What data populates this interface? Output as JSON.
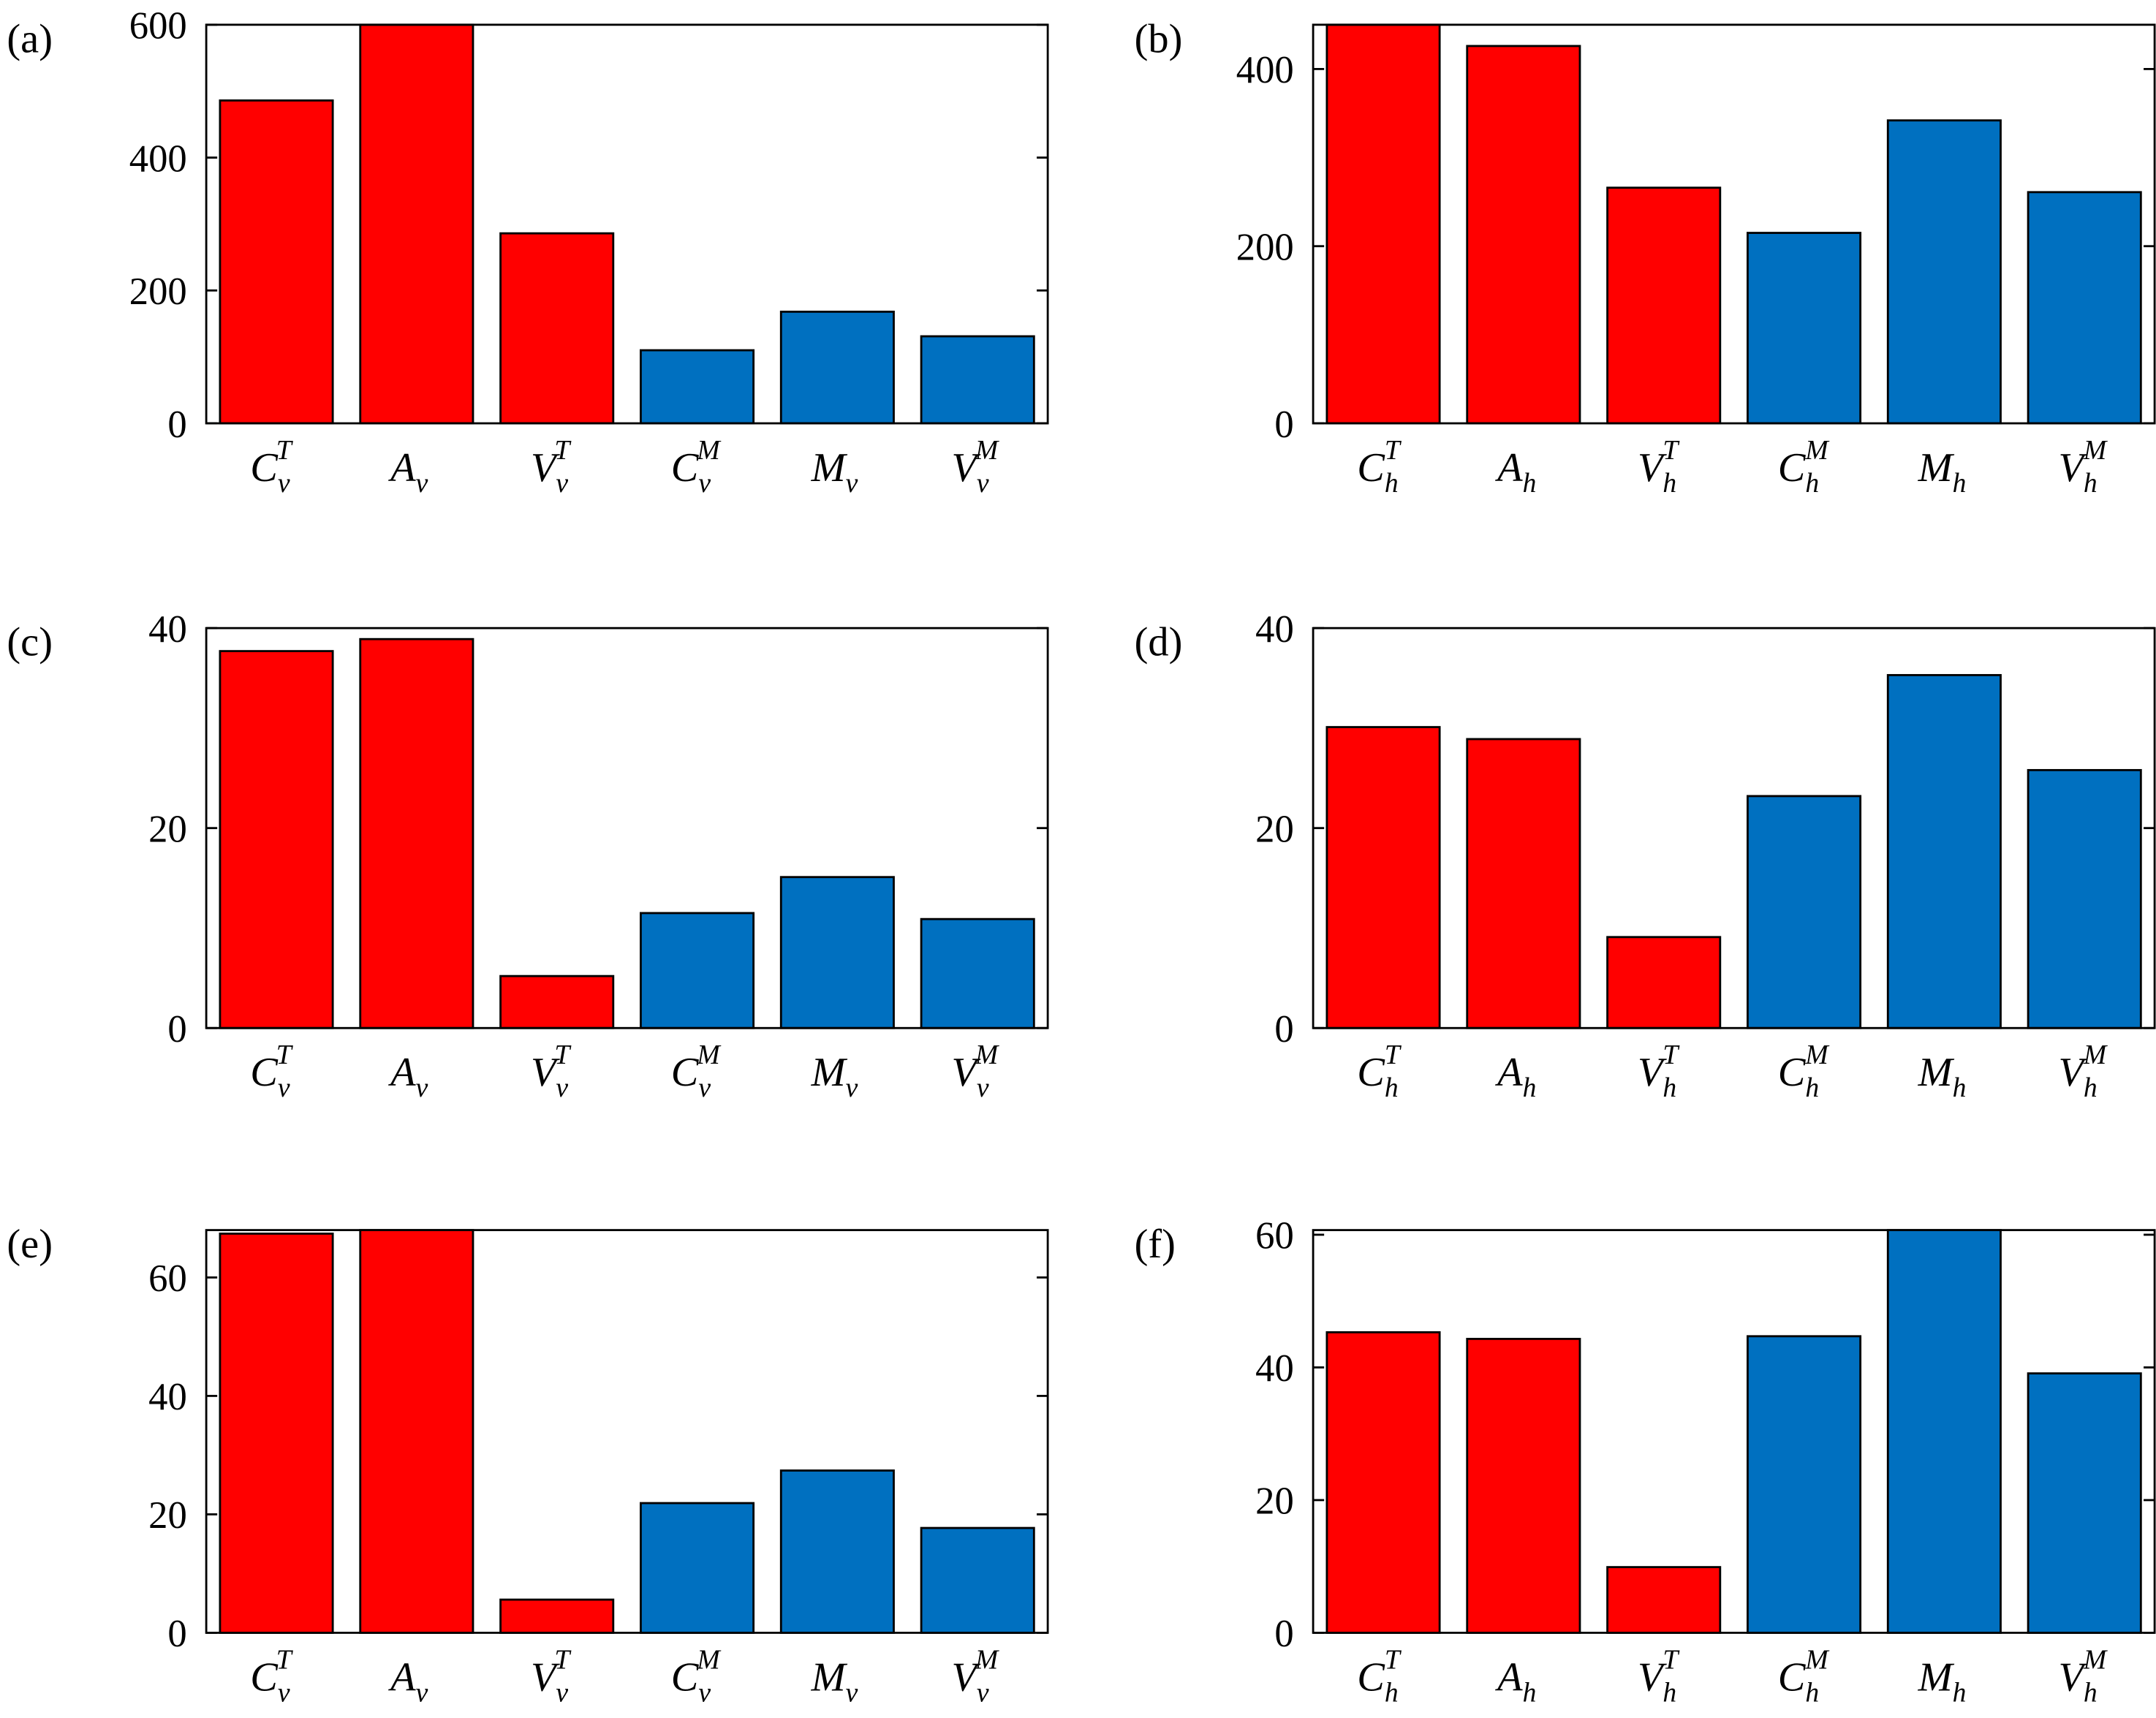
{
  "chart_data": [
    {
      "panel": "(a)",
      "type": "bar",
      "ylim": [
        0,
        600
      ],
      "yticks": [
        0,
        200,
        400,
        600
      ],
      "categories": [
        {
          "base": "C",
          "sub": "v",
          "sup": "T"
        },
        {
          "base": "A",
          "sub": "v",
          "sup": ""
        },
        {
          "base": "V",
          "sub": "v",
          "sup": "T"
        },
        {
          "base": "C",
          "sub": "v",
          "sup": "M"
        },
        {
          "base": "M",
          "sub": "v",
          "sup": ""
        },
        {
          "base": "V",
          "sub": "v",
          "sup": "M"
        }
      ],
      "values": [
        486,
        600,
        286,
        110,
        168,
        131
      ],
      "colors": [
        "#ff0000",
        "#ff0000",
        "#ff0000",
        "#0070c0",
        "#0070c0",
        "#0070c0"
      ]
    },
    {
      "panel": "(b)",
      "type": "bar",
      "ylim": [
        0,
        450
      ],
      "yticks": [
        0,
        200,
        400
      ],
      "categories": [
        {
          "base": "C",
          "sub": "h",
          "sup": "T"
        },
        {
          "base": "A",
          "sub": "h",
          "sup": ""
        },
        {
          "base": "V",
          "sub": "h",
          "sup": "T"
        },
        {
          "base": "C",
          "sub": "h",
          "sup": "M"
        },
        {
          "base": "M",
          "sub": "h",
          "sup": ""
        },
        {
          "base": "V",
          "sub": "h",
          "sup": "M"
        }
      ],
      "values": [
        450,
        426,
        266,
        215,
        342,
        261
      ],
      "colors": [
        "#ff0000",
        "#ff0000",
        "#ff0000",
        "#0070c0",
        "#0070c0",
        "#0070c0"
      ]
    },
    {
      "panel": "(c)",
      "type": "bar",
      "ylim": [
        0,
        40
      ],
      "yticks": [
        0,
        20,
        40
      ],
      "categories": [
        {
          "base": "C",
          "sub": "v",
          "sup": "T"
        },
        {
          "base": "A",
          "sub": "v",
          "sup": ""
        },
        {
          "base": "V",
          "sub": "v",
          "sup": "T"
        },
        {
          "base": "C",
          "sub": "v",
          "sup": "M"
        },
        {
          "base": "M",
          "sub": "v",
          "sup": ""
        },
        {
          "base": "V",
          "sub": "v",
          "sup": "M"
        }
      ],
      "values": [
        37.7,
        38.9,
        5.2,
        11.5,
        15.1,
        10.9
      ],
      "colors": [
        "#ff0000",
        "#ff0000",
        "#ff0000",
        "#0070c0",
        "#0070c0",
        "#0070c0"
      ]
    },
    {
      "panel": "(d)",
      "type": "bar",
      "ylim": [
        0,
        40
      ],
      "yticks": [
        0,
        20,
        40
      ],
      "categories": [
        {
          "base": "C",
          "sub": "h",
          "sup": "T"
        },
        {
          "base": "A",
          "sub": "h",
          "sup": ""
        },
        {
          "base": "V",
          "sub": "h",
          "sup": "T"
        },
        {
          "base": "C",
          "sub": "h",
          "sup": "M"
        },
        {
          "base": "M",
          "sub": "h",
          "sup": ""
        },
        {
          "base": "V",
          "sub": "h",
          "sup": "M"
        }
      ],
      "values": [
        30.1,
        28.9,
        9.1,
        23.2,
        35.3,
        25.8
      ],
      "colors": [
        "#ff0000",
        "#ff0000",
        "#ff0000",
        "#0070c0",
        "#0070c0",
        "#0070c0"
      ]
    },
    {
      "panel": "(e)",
      "type": "bar",
      "ylim": [
        0,
        68
      ],
      "yticks": [
        0,
        20,
        40,
        60
      ],
      "categories": [
        {
          "base": "C",
          "sub": "v",
          "sup": "T"
        },
        {
          "base": "A",
          "sub": "v",
          "sup": ""
        },
        {
          "base": "V",
          "sub": "v",
          "sup": "T"
        },
        {
          "base": "C",
          "sub": "v",
          "sup": "M"
        },
        {
          "base": "M",
          "sub": "v",
          "sup": ""
        },
        {
          "base": "V",
          "sub": "v",
          "sup": "M"
        }
      ],
      "values": [
        67.4,
        68,
        5.6,
        21.9,
        27.4,
        17.7
      ],
      "colors": [
        "#ff0000",
        "#ff0000",
        "#ff0000",
        "#0070c0",
        "#0070c0",
        "#0070c0"
      ]
    },
    {
      "panel": "(f)",
      "type": "bar",
      "ylim": [
        0,
        60.7
      ],
      "yticks": [
        0,
        20,
        40,
        60
      ],
      "categories": [
        {
          "base": "C",
          "sub": "h",
          "sup": "T"
        },
        {
          "base": "A",
          "sub": "h",
          "sup": ""
        },
        {
          "base": "V",
          "sub": "h",
          "sup": "T"
        },
        {
          "base": "C",
          "sub": "h",
          "sup": "M"
        },
        {
          "base": "M",
          "sub": "h",
          "sup": ""
        },
        {
          "base": "V",
          "sub": "h",
          "sup": "M"
        }
      ],
      "values": [
        45.3,
        44.3,
        9.9,
        44.7,
        60.7,
        39.1
      ],
      "colors": [
        "#ff0000",
        "#ff0000",
        "#ff0000",
        "#0070c0",
        "#0070c0",
        "#0070c0"
      ]
    }
  ]
}
